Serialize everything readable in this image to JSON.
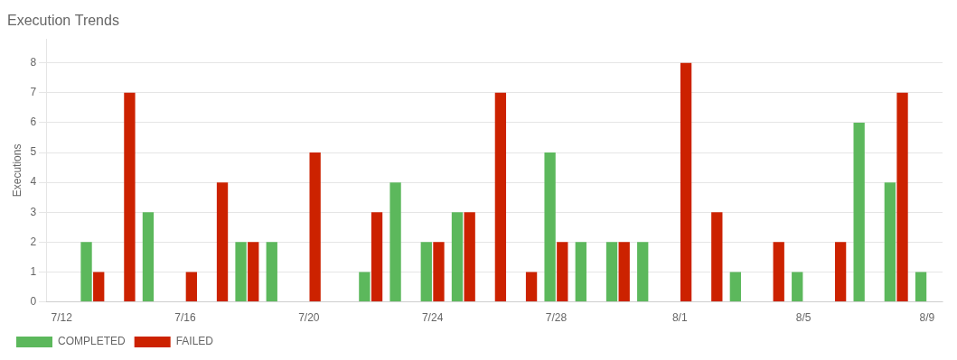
{
  "chart_data": {
    "type": "bar",
    "title": "Execution Trends",
    "y_label": "Executions",
    "categories": [
      "7/12",
      null,
      null,
      null,
      "7/16",
      null,
      null,
      null,
      "7/20",
      null,
      null,
      null,
      "7/24",
      null,
      null,
      null,
      "7/28",
      null,
      null,
      null,
      "8/1",
      null,
      null,
      null,
      "8/5",
      null,
      null,
      null,
      "8/9"
    ],
    "series": [
      {
        "name": "COMPLETED",
        "color": "#5cb85c",
        "values": [
          null,
          2,
          0,
          3,
          0,
          0,
          2,
          2,
          0,
          null,
          1,
          4,
          2,
          3,
          0,
          0,
          5,
          2,
          2,
          2,
          0,
          0,
          1,
          0,
          1,
          0,
          6,
          4,
          1
        ]
      },
      {
        "name": "FAILED",
        "color": "#cc2200",
        "values": [
          null,
          1,
          7,
          0,
          1,
          4,
          2,
          0,
          5,
          null,
          3,
          0,
          2,
          3,
          7,
          1,
          2,
          0,
          2,
          0,
          8,
          3,
          0,
          2,
          0,
          2,
          0,
          7,
          0
        ]
      }
    ],
    "ylim": [
      0,
      8.8
    ],
    "yticks": [
      0,
      1,
      2,
      3,
      4,
      5,
      6,
      7,
      8
    ],
    "grid": true,
    "legend": "bottom"
  }
}
